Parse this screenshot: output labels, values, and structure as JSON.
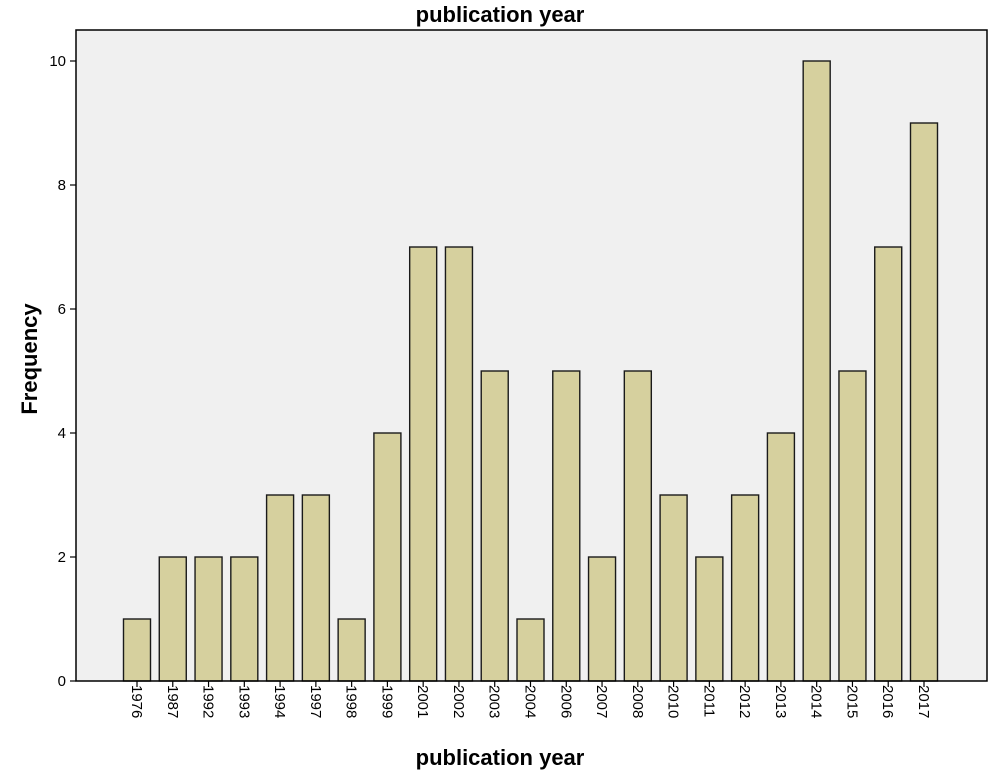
{
  "chart_data": {
    "type": "bar",
    "title": "publication year",
    "xlabel": "publication year",
    "ylabel": "Frequency",
    "categories": [
      "1976",
      "1987",
      "1992",
      "1993",
      "1994",
      "1997",
      "1998",
      "1999",
      "2001",
      "2002",
      "2003",
      "2004",
      "2006",
      "2007",
      "2008",
      "2010",
      "2011",
      "2012",
      "2013",
      "2014",
      "2015",
      "2016",
      "2017"
    ],
    "values": [
      1,
      2,
      2,
      2,
      3,
      3,
      1,
      4,
      7,
      7,
      5,
      1,
      5,
      2,
      5,
      3,
      2,
      3,
      4,
      10,
      5,
      7,
      9
    ],
    "ylim": [
      0,
      10.5
    ],
    "yticks": [
      0,
      2,
      4,
      6,
      8,
      10
    ],
    "grid": false,
    "legend": "none",
    "colors": {
      "bar_fill": "#d6d09e",
      "bar_stroke": "#1a1a1a",
      "plot_background": "#f0f0f0",
      "frame": "#000000"
    }
  }
}
